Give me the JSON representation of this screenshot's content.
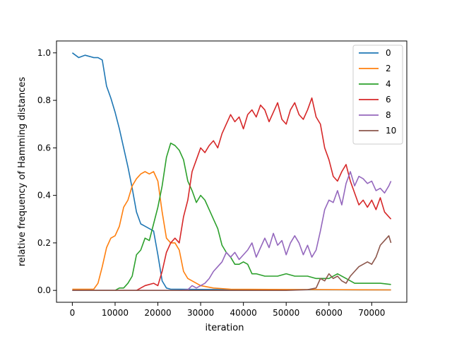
{
  "chart_data": {
    "type": "line",
    "xlabel": "iteration",
    "ylabel": "relative frequency of Hamming distances",
    "xlim": [
      -3700,
      78200
    ],
    "ylim": [
      -0.05,
      1.05
    ],
    "xticks": [
      0,
      10000,
      20000,
      30000,
      40000,
      50000,
      60000,
      70000
    ],
    "yticks": [
      0.0,
      0.2,
      0.4,
      0.6,
      0.8,
      1.0
    ],
    "xtick_labels": [
      "0",
      "10000",
      "20000",
      "30000",
      "40000",
      "50000",
      "60000",
      "70000"
    ],
    "ytick_labels": [
      "0.0",
      "0.2",
      "0.4",
      "0.6",
      "0.8",
      "1.0"
    ],
    "grid": false,
    "legend_position": "top-right",
    "series": [
      {
        "name": "0",
        "color": "#1f77b4",
        "points": [
          [
            0,
            1.0
          ],
          [
            1500,
            0.98
          ],
          [
            3000,
            0.99
          ],
          [
            5000,
            0.98
          ],
          [
            6000,
            0.98
          ],
          [
            7000,
            0.97
          ],
          [
            8000,
            0.86
          ],
          [
            9000,
            0.81
          ],
          [
            10000,
            0.75
          ],
          [
            11000,
            0.68
          ],
          [
            12000,
            0.6
          ],
          [
            13000,
            0.52
          ],
          [
            14000,
            0.43
          ],
          [
            15000,
            0.33
          ],
          [
            16000,
            0.28
          ],
          [
            17000,
            0.27
          ],
          [
            18000,
            0.26
          ],
          [
            19000,
            0.25
          ],
          [
            20000,
            0.15
          ],
          [
            21000,
            0.04
          ],
          [
            22000,
            0.01
          ],
          [
            23000,
            0.005
          ],
          [
            30000,
            0.004
          ],
          [
            40000,
            0.003
          ],
          [
            74500,
            0.002
          ]
        ]
      },
      {
        "name": "2",
        "color": "#ff7f0e",
        "points": [
          [
            0,
            0.005
          ],
          [
            5000,
            0.005
          ],
          [
            6000,
            0.03
          ],
          [
            7000,
            0.1
          ],
          [
            8000,
            0.18
          ],
          [
            9000,
            0.22
          ],
          [
            10000,
            0.23
          ],
          [
            11000,
            0.27
          ],
          [
            12000,
            0.35
          ],
          [
            13000,
            0.38
          ],
          [
            14000,
            0.44
          ],
          [
            15000,
            0.47
          ],
          [
            16000,
            0.49
          ],
          [
            17000,
            0.5
          ],
          [
            18000,
            0.49
          ],
          [
            19000,
            0.5
          ],
          [
            20000,
            0.46
          ],
          [
            21000,
            0.33
          ],
          [
            22000,
            0.22
          ],
          [
            23000,
            0.2
          ],
          [
            24000,
            0.2
          ],
          [
            25000,
            0.17
          ],
          [
            26000,
            0.08
          ],
          [
            27000,
            0.05
          ],
          [
            28000,
            0.04
          ],
          [
            30000,
            0.02
          ],
          [
            33000,
            0.01
          ],
          [
            37000,
            0.005
          ],
          [
            74500,
            0.002
          ]
        ]
      },
      {
        "name": "4",
        "color": "#2ca02c",
        "points": [
          [
            0,
            0.0
          ],
          [
            8000,
            0.0
          ],
          [
            10000,
            0.0
          ],
          [
            11000,
            0.01
          ],
          [
            12000,
            0.01
          ],
          [
            13000,
            0.03
          ],
          [
            14000,
            0.06
          ],
          [
            15000,
            0.15
          ],
          [
            16000,
            0.17
          ],
          [
            17000,
            0.22
          ],
          [
            18000,
            0.21
          ],
          [
            19000,
            0.28
          ],
          [
            20000,
            0.35
          ],
          [
            21000,
            0.44
          ],
          [
            22000,
            0.56
          ],
          [
            23000,
            0.62
          ],
          [
            24000,
            0.61
          ],
          [
            25000,
            0.59
          ],
          [
            26000,
            0.55
          ],
          [
            27000,
            0.46
          ],
          [
            28000,
            0.42
          ],
          [
            29000,
            0.37
          ],
          [
            30000,
            0.4
          ],
          [
            31000,
            0.38
          ],
          [
            32000,
            0.34
          ],
          [
            33000,
            0.3
          ],
          [
            34000,
            0.26
          ],
          [
            35000,
            0.19
          ],
          [
            36000,
            0.16
          ],
          [
            37000,
            0.14
          ],
          [
            38000,
            0.11
          ],
          [
            39000,
            0.11
          ],
          [
            40000,
            0.12
          ],
          [
            41000,
            0.11
          ],
          [
            42000,
            0.07
          ],
          [
            43000,
            0.07
          ],
          [
            45000,
            0.06
          ],
          [
            48000,
            0.06
          ],
          [
            50000,
            0.07
          ],
          [
            52000,
            0.06
          ],
          [
            55000,
            0.06
          ],
          [
            57000,
            0.05
          ],
          [
            60000,
            0.05
          ],
          [
            62000,
            0.07
          ],
          [
            64000,
            0.05
          ],
          [
            66000,
            0.03
          ],
          [
            70000,
            0.03
          ],
          [
            72000,
            0.03
          ],
          [
            74500,
            0.025
          ]
        ]
      },
      {
        "name": "6",
        "color": "#d62728",
        "points": [
          [
            0,
            0.0
          ],
          [
            13000,
            0.0
          ],
          [
            15000,
            0.0
          ],
          [
            17000,
            0.02
          ],
          [
            19000,
            0.03
          ],
          [
            20000,
            0.02
          ],
          [
            21000,
            0.08
          ],
          [
            22000,
            0.16
          ],
          [
            23000,
            0.2
          ],
          [
            24000,
            0.22
          ],
          [
            25000,
            0.2
          ],
          [
            26000,
            0.31
          ],
          [
            27000,
            0.38
          ],
          [
            28000,
            0.5
          ],
          [
            29000,
            0.55
          ],
          [
            30000,
            0.6
          ],
          [
            31000,
            0.58
          ],
          [
            32000,
            0.61
          ],
          [
            33000,
            0.63
          ],
          [
            34000,
            0.6
          ],
          [
            35000,
            0.66
          ],
          [
            36000,
            0.7
          ],
          [
            37000,
            0.74
          ],
          [
            38000,
            0.71
          ],
          [
            39000,
            0.73
          ],
          [
            40000,
            0.68
          ],
          [
            41000,
            0.74
          ],
          [
            42000,
            0.76
          ],
          [
            43000,
            0.73
          ],
          [
            44000,
            0.78
          ],
          [
            45000,
            0.76
          ],
          [
            46000,
            0.71
          ],
          [
            47000,
            0.75
          ],
          [
            48000,
            0.79
          ],
          [
            49000,
            0.72
          ],
          [
            50000,
            0.7
          ],
          [
            51000,
            0.76
          ],
          [
            52000,
            0.79
          ],
          [
            53000,
            0.74
          ],
          [
            54000,
            0.72
          ],
          [
            55000,
            0.76
          ],
          [
            56000,
            0.81
          ],
          [
            57000,
            0.73
          ],
          [
            58000,
            0.7
          ],
          [
            59000,
            0.6
          ],
          [
            60000,
            0.55
          ],
          [
            61000,
            0.48
          ],
          [
            62000,
            0.46
          ],
          [
            63000,
            0.5
          ],
          [
            64000,
            0.53
          ],
          [
            65000,
            0.46
          ],
          [
            66000,
            0.41
          ],
          [
            67000,
            0.36
          ],
          [
            68000,
            0.38
          ],
          [
            69000,
            0.35
          ],
          [
            70000,
            0.38
          ],
          [
            71000,
            0.34
          ],
          [
            72000,
            0.39
          ],
          [
            73000,
            0.33
          ],
          [
            74000,
            0.31
          ],
          [
            74500,
            0.3
          ]
        ]
      },
      {
        "name": "8",
        "color": "#9467bd",
        "points": [
          [
            0,
            0.0
          ],
          [
            25000,
            0.0
          ],
          [
            27000,
            0.003
          ],
          [
            28000,
            0.02
          ],
          [
            29000,
            0.01
          ],
          [
            30000,
            0.02
          ],
          [
            31000,
            0.03
          ],
          [
            32000,
            0.05
          ],
          [
            33000,
            0.08
          ],
          [
            34000,
            0.1
          ],
          [
            35000,
            0.12
          ],
          [
            36000,
            0.16
          ],
          [
            37000,
            0.14
          ],
          [
            38000,
            0.16
          ],
          [
            39000,
            0.13
          ],
          [
            40000,
            0.15
          ],
          [
            41000,
            0.17
          ],
          [
            42000,
            0.2
          ],
          [
            43000,
            0.14
          ],
          [
            44000,
            0.18
          ],
          [
            45000,
            0.22
          ],
          [
            46000,
            0.18
          ],
          [
            47000,
            0.24
          ],
          [
            48000,
            0.19
          ],
          [
            49000,
            0.21
          ],
          [
            50000,
            0.15
          ],
          [
            51000,
            0.2
          ],
          [
            52000,
            0.23
          ],
          [
            53000,
            0.2
          ],
          [
            54000,
            0.15
          ],
          [
            55000,
            0.19
          ],
          [
            56000,
            0.14
          ],
          [
            57000,
            0.17
          ],
          [
            58000,
            0.25
          ],
          [
            59000,
            0.34
          ],
          [
            60000,
            0.38
          ],
          [
            61000,
            0.37
          ],
          [
            62000,
            0.42
          ],
          [
            63000,
            0.36
          ],
          [
            64000,
            0.45
          ],
          [
            65000,
            0.5
          ],
          [
            66000,
            0.44
          ],
          [
            67000,
            0.48
          ],
          [
            68000,
            0.47
          ],
          [
            69000,
            0.45
          ],
          [
            70000,
            0.46
          ],
          [
            71000,
            0.42
          ],
          [
            72000,
            0.43
          ],
          [
            73000,
            0.41
          ],
          [
            74000,
            0.44
          ],
          [
            74500,
            0.46
          ]
        ]
      },
      {
        "name": "10",
        "color": "#8c564b",
        "points": [
          [
            0,
            0.0
          ],
          [
            50000,
            0.0
          ],
          [
            55000,
            0.003
          ],
          [
            57000,
            0.01
          ],
          [
            58000,
            0.05
          ],
          [
            59000,
            0.04
          ],
          [
            60000,
            0.07
          ],
          [
            61000,
            0.05
          ],
          [
            62000,
            0.06
          ],
          [
            63000,
            0.04
          ],
          [
            64000,
            0.03
          ],
          [
            65000,
            0.06
          ],
          [
            66000,
            0.08
          ],
          [
            67000,
            0.1
          ],
          [
            68000,
            0.11
          ],
          [
            69000,
            0.12
          ],
          [
            70000,
            0.11
          ],
          [
            71000,
            0.14
          ],
          [
            72000,
            0.19
          ],
          [
            73000,
            0.21
          ],
          [
            74000,
            0.23
          ],
          [
            74500,
            0.2
          ]
        ]
      }
    ]
  }
}
